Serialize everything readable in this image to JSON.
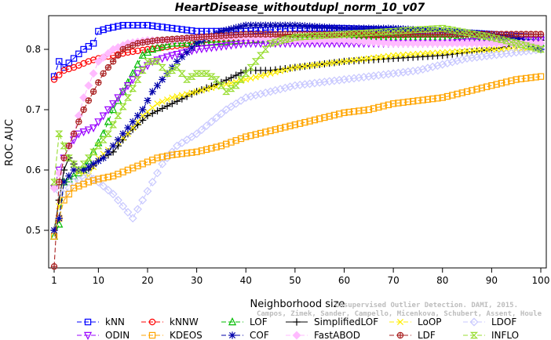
{
  "chart_data": {
    "type": "line",
    "title": "HeartDisease_withoutdupl_norm_10_v07",
    "xlabel": "Neighborhood size",
    "ylabel": "ROC AUC",
    "xlim": [
      1,
      100
    ],
    "ylim": [
      0.45,
      0.85
    ],
    "x_ticks": [
      1,
      10,
      20,
      30,
      40,
      50,
      60,
      70,
      80,
      90,
      100
    ],
    "y_ticks": [
      0.5,
      0.6,
      0.7,
      0.8
    ],
    "grid": false,
    "legend_position": "bottom",
    "series": [
      {
        "name": "kNN",
        "color": "#0000ff",
        "marker": "square",
        "dash": "6,3",
        "points": [
          [
            1,
            0.755
          ],
          [
            2,
            0.78
          ],
          [
            3,
            0.77
          ],
          [
            5,
            0.785
          ],
          [
            7,
            0.8
          ],
          [
            9,
            0.81
          ],
          [
            10,
            0.83
          ],
          [
            12,
            0.835
          ],
          [
            15,
            0.84
          ],
          [
            20,
            0.84
          ],
          [
            25,
            0.835
          ],
          [
            30,
            0.83
          ],
          [
            40,
            0.83
          ],
          [
            50,
            0.835
          ],
          [
            60,
            0.835
          ],
          [
            70,
            0.832
          ],
          [
            80,
            0.83
          ],
          [
            90,
            0.825
          ],
          [
            95,
            0.822
          ],
          [
            100,
            0.82
          ]
        ]
      },
      {
        "name": "kNNW",
        "color": "#ff0000",
        "marker": "circle",
        "dash": "6,3",
        "points": [
          [
            1,
            0.75
          ],
          [
            3,
            0.765
          ],
          [
            5,
            0.77
          ],
          [
            8,
            0.78
          ],
          [
            10,
            0.785
          ],
          [
            13,
            0.79
          ],
          [
            16,
            0.795
          ],
          [
            20,
            0.8
          ],
          [
            25,
            0.805
          ],
          [
            30,
            0.81
          ],
          [
            40,
            0.815
          ],
          [
            50,
            0.82
          ],
          [
            60,
            0.822
          ],
          [
            70,
            0.824
          ],
          [
            80,
            0.825
          ],
          [
            90,
            0.825
          ],
          [
            100,
            0.825
          ]
        ]
      },
      {
        "name": "LOF",
        "color": "#00bb00",
        "marker": "triangle",
        "dash": "6,3",
        "points": [
          [
            1,
            0.49
          ],
          [
            2,
            0.51
          ],
          [
            3,
            0.58
          ],
          [
            5,
            0.59
          ],
          [
            7,
            0.6
          ],
          [
            9,
            0.63
          ],
          [
            11,
            0.66
          ],
          [
            13,
            0.7
          ],
          [
            15,
            0.73
          ],
          [
            17,
            0.76
          ],
          [
            19,
            0.79
          ],
          [
            21,
            0.8
          ],
          [
            25,
            0.81
          ],
          [
            30,
            0.81
          ],
          [
            40,
            0.815
          ],
          [
            50,
            0.82
          ],
          [
            60,
            0.82
          ],
          [
            70,
            0.82
          ],
          [
            80,
            0.82
          ],
          [
            90,
            0.815
          ],
          [
            100,
            0.81
          ]
        ]
      },
      {
        "name": "SimplifiedLOF",
        "color": "#000000",
        "marker": "plus",
        "dash": "",
        "points": [
          [
            1,
            0.5
          ],
          [
            2,
            0.55
          ],
          [
            3,
            0.6
          ],
          [
            4,
            0.62
          ],
          [
            6,
            0.6
          ],
          [
            8,
            0.6
          ],
          [
            10,
            0.615
          ],
          [
            13,
            0.63
          ],
          [
            16,
            0.66
          ],
          [
            20,
            0.69
          ],
          [
            25,
            0.71
          ],
          [
            30,
            0.73
          ],
          [
            35,
            0.745
          ],
          [
            40,
            0.765
          ],
          [
            45,
            0.765
          ],
          [
            50,
            0.77
          ],
          [
            55,
            0.775
          ],
          [
            60,
            0.78
          ],
          [
            70,
            0.785
          ],
          [
            80,
            0.79
          ],
          [
            90,
            0.8
          ],
          [
            100,
            0.815
          ]
        ]
      },
      {
        "name": "LoOP",
        "color": "#ffee00",
        "marker": "x",
        "dash": "6,3",
        "points": [
          [
            1,
            0.5
          ],
          [
            3,
            0.58
          ],
          [
            5,
            0.6
          ],
          [
            8,
            0.59
          ],
          [
            10,
            0.62
          ],
          [
            13,
            0.64
          ],
          [
            16,
            0.66
          ],
          [
            19,
            0.69
          ],
          [
            22,
            0.71
          ],
          [
            25,
            0.72
          ],
          [
            30,
            0.73
          ],
          [
            35,
            0.74
          ],
          [
            40,
            0.75
          ],
          [
            45,
            0.76
          ],
          [
            50,
            0.77
          ],
          [
            55,
            0.775
          ],
          [
            60,
            0.78
          ],
          [
            70,
            0.79
          ],
          [
            80,
            0.795
          ],
          [
            90,
            0.8
          ],
          [
            100,
            0.8
          ]
        ]
      },
      {
        "name": "LDOF",
        "color": "#c8c8ff",
        "marker": "diamond",
        "dash": "6,3",
        "points": [
          [
            1,
            0.57
          ],
          [
            3,
            0.56
          ],
          [
            5,
            0.58
          ],
          [
            8,
            0.59
          ],
          [
            10,
            0.58
          ],
          [
            13,
            0.56
          ],
          [
            15,
            0.54
          ],
          [
            17,
            0.52
          ],
          [
            19,
            0.55
          ],
          [
            21,
            0.58
          ],
          [
            23,
            0.61
          ],
          [
            26,
            0.64
          ],
          [
            30,
            0.66
          ],
          [
            33,
            0.68
          ],
          [
            36,
            0.7
          ],
          [
            40,
            0.72
          ],
          [
            45,
            0.73
          ],
          [
            50,
            0.74
          ],
          [
            55,
            0.745
          ],
          [
            60,
            0.75
          ],
          [
            65,
            0.755
          ],
          [
            70,
            0.76
          ],
          [
            75,
            0.765
          ],
          [
            80,
            0.775
          ],
          [
            85,
            0.785
          ],
          [
            90,
            0.79
          ],
          [
            95,
            0.795
          ],
          [
            100,
            0.8
          ]
        ]
      },
      {
        "name": "ODIN",
        "color": "#9900ff",
        "marker": "triangle-down",
        "dash": "6,3",
        "points": [
          [
            1,
            0.57
          ],
          [
            2,
            0.6
          ],
          [
            4,
            0.64
          ],
          [
            6,
            0.66
          ],
          [
            9,
            0.67
          ],
          [
            12,
            0.7
          ],
          [
            15,
            0.73
          ],
          [
            18,
            0.76
          ],
          [
            21,
            0.78
          ],
          [
            25,
            0.79
          ],
          [
            30,
            0.8
          ],
          [
            40,
            0.81
          ],
          [
            50,
            0.81
          ],
          [
            60,
            0.81
          ],
          [
            70,
            0.81
          ],
          [
            80,
            0.81
          ],
          [
            90,
            0.815
          ],
          [
            100,
            0.815
          ]
        ]
      },
      {
        "name": "KDEOS",
        "color": "#ffa500",
        "marker": "square",
        "dash": "6,3",
        "points": [
          [
            1,
            0.49
          ],
          [
            3,
            0.55
          ],
          [
            5,
            0.57
          ],
          [
            8,
            0.58
          ],
          [
            10,
            0.585
          ],
          [
            13,
            0.59
          ],
          [
            16,
            0.6
          ],
          [
            19,
            0.61
          ],
          [
            22,
            0.62
          ],
          [
            25,
            0.625
          ],
          [
            30,
            0.63
          ],
          [
            35,
            0.64
          ],
          [
            40,
            0.655
          ],
          [
            45,
            0.665
          ],
          [
            50,
            0.675
          ],
          [
            55,
            0.685
          ],
          [
            60,
            0.695
          ],
          [
            65,
            0.7
          ],
          [
            70,
            0.71
          ],
          [
            75,
            0.715
          ],
          [
            80,
            0.72
          ],
          [
            85,
            0.73
          ],
          [
            90,
            0.74
          ],
          [
            95,
            0.75
          ],
          [
            100,
            0.755
          ]
        ]
      },
      {
        "name": "COF",
        "color": "#0000aa",
        "marker": "asterisk",
        "dash": "6,3",
        "points": [
          [
            1,
            0.5
          ],
          [
            2,
            0.52
          ],
          [
            3,
            0.58
          ],
          [
            5,
            0.6
          ],
          [
            7,
            0.6
          ],
          [
            9,
            0.61
          ],
          [
            11,
            0.62
          ],
          [
            13,
            0.64
          ],
          [
            15,
            0.66
          ],
          [
            17,
            0.68
          ],
          [
            19,
            0.7
          ],
          [
            21,
            0.73
          ],
          [
            23,
            0.75
          ],
          [
            26,
            0.78
          ],
          [
            30,
            0.81
          ],
          [
            35,
            0.83
          ],
          [
            40,
            0.84
          ],
          [
            50,
            0.84
          ],
          [
            60,
            0.835
          ],
          [
            70,
            0.835
          ],
          [
            80,
            0.83
          ],
          [
            90,
            0.825
          ],
          [
            95,
            0.82
          ],
          [
            100,
            0.8
          ]
        ]
      },
      {
        "name": "FastABOD",
        "color": "#ffbbff",
        "marker": "diamond-filled",
        "dash": "6,3",
        "points": [
          [
            1,
            0.57
          ],
          [
            3,
            0.62
          ],
          [
            5,
            0.66
          ],
          [
            7,
            0.72
          ],
          [
            10,
            0.78
          ],
          [
            13,
            0.8
          ],
          [
            16,
            0.81
          ],
          [
            20,
            0.815
          ],
          [
            25,
            0.815
          ],
          [
            30,
            0.82
          ],
          [
            40,
            0.82
          ],
          [
            50,
            0.815
          ],
          [
            60,
            0.815
          ],
          [
            70,
            0.81
          ],
          [
            80,
            0.81
          ],
          [
            90,
            0.81
          ],
          [
            100,
            0.81
          ]
        ]
      },
      {
        "name": "LDF",
        "color": "#aa2222",
        "marker": "circle-plus",
        "dash": "6,3",
        "points": [
          [
            1,
            0.44
          ],
          [
            2,
            0.58
          ],
          [
            3,
            0.62
          ],
          [
            5,
            0.66
          ],
          [
            7,
            0.7
          ],
          [
            9,
            0.73
          ],
          [
            11,
            0.76
          ],
          [
            13,
            0.78
          ],
          [
            15,
            0.8
          ],
          [
            18,
            0.81
          ],
          [
            22,
            0.815
          ],
          [
            30,
            0.82
          ],
          [
            40,
            0.825
          ],
          [
            50,
            0.825
          ],
          [
            60,
            0.825
          ],
          [
            70,
            0.825
          ],
          [
            80,
            0.825
          ],
          [
            90,
            0.825
          ],
          [
            100,
            0.825
          ]
        ]
      },
      {
        "name": "INFLO",
        "color": "#99dd33",
        "marker": "hourglass",
        "dash": "6,3",
        "points": [
          [
            1,
            0.58
          ],
          [
            2,
            0.66
          ],
          [
            4,
            0.62
          ],
          [
            6,
            0.6
          ],
          [
            8,
            0.62
          ],
          [
            10,
            0.64
          ],
          [
            12,
            0.66
          ],
          [
            14,
            0.69
          ],
          [
            16,
            0.72
          ],
          [
            18,
            0.75
          ],
          [
            20,
            0.78
          ],
          [
            22,
            0.78
          ],
          [
            24,
            0.76
          ],
          [
            26,
            0.77
          ],
          [
            28,
            0.75
          ],
          [
            30,
            0.76
          ],
          [
            32,
            0.76
          ],
          [
            34,
            0.75
          ],
          [
            36,
            0.73
          ],
          [
            38,
            0.74
          ],
          [
            40,
            0.76
          ],
          [
            42,
            0.78
          ],
          [
            45,
            0.81
          ],
          [
            50,
            0.82
          ],
          [
            60,
            0.825
          ],
          [
            70,
            0.83
          ],
          [
            80,
            0.835
          ],
          [
            90,
            0.82
          ],
          [
            100,
            0.8
          ]
        ]
      }
    ]
  },
  "watermark": {
    "line1": "Unsupervised Outlier Detection. DAMI, 2015.",
    "line2": "Campos, Zimek, Sander, Campello, Micenkova, Schubert, Assent, Houle"
  }
}
